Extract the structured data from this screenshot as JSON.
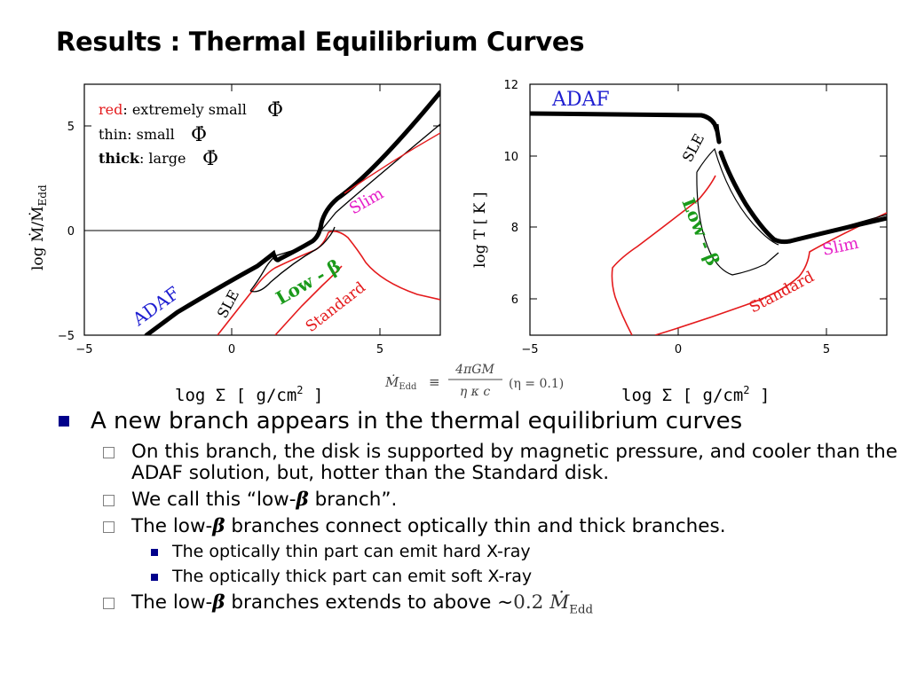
{
  "slide": {
    "title": "Results : Thermal Equilibrium Curves"
  },
  "left_panel": {
    "x_ticks": [
      "−5",
      "0",
      "5"
    ],
    "y_ticks": [
      "5",
      "0",
      "−5"
    ],
    "y_label": "log Ṁ/Ṁ",
    "y_label_sub": "Edd",
    "legend": {
      "red_word": "red",
      "red_rest": ": extremely small",
      "thin_line": "thin: small",
      "thick_word": "thick",
      "thick_rest": ": large",
      "phi_symbol": "Φ̇"
    },
    "labels": {
      "adaf": "ADAF",
      "sle": "SLE",
      "low_beta": "Low - β",
      "standard": "Standard",
      "slim": "Slim"
    },
    "x_label": "log Σ [ g/cm",
    "x_label_exp": "2",
    "x_label_end": " ]"
  },
  "right_panel": {
    "x_ticks": [
      "−5",
      "0",
      "5"
    ],
    "y_ticks": [
      "12",
      "10",
      "8",
      "6"
    ],
    "y_label": "log T [ K ]",
    "labels": {
      "adaf": "ADAF",
      "sle": "SLE",
      "low_beta": "Low - β",
      "standard": "Standard",
      "slim": "Slim"
    },
    "x_label": "log Σ [ g/cm",
    "x_label_exp": "2",
    "x_label_end": " ]"
  },
  "formula": {
    "lhs": "Ṁ",
    "lhs_sub": "Edd",
    "equiv": "≡",
    "numerator": "4πGM",
    "denominator": "η κ c",
    "eta_note": "(η = 0.1)",
    "eta_sub": "e"
  },
  "bullets": {
    "main": "A new branch appears in the thermal equilibrium curves",
    "sub1": "On this branch, the disk is supported by magnetic pressure, and cooler than the ADAF solution, but, hotter than the Standard disk.",
    "sub2_before": "We call this “low-",
    "sub2_beta": "β",
    "sub2_after": " branch”.",
    "sub3_before": "The low-",
    "sub3_beta": "β",
    "sub3_after": " branches connect optically thin and thick branches.",
    "sub3a": "The optically thin part can emit hard X-ray",
    "sub3b": "The optically thick part can emit soft X-ray",
    "sub4_before": "The low-",
    "sub4_beta": "β",
    "sub4_after": " branches extends to above ~",
    "sub4_value": "0.2",
    "sub4_mdot": "Ṁ",
    "sub4_sub": "Edd"
  },
  "colors": {
    "red_curve": "#e41a1c",
    "adaf_blue": "#1f1fd1",
    "slim_magenta": "#e61ec8",
    "lowbeta_green": "#1a9a1a",
    "bullet_blue": "#00008b"
  }
}
